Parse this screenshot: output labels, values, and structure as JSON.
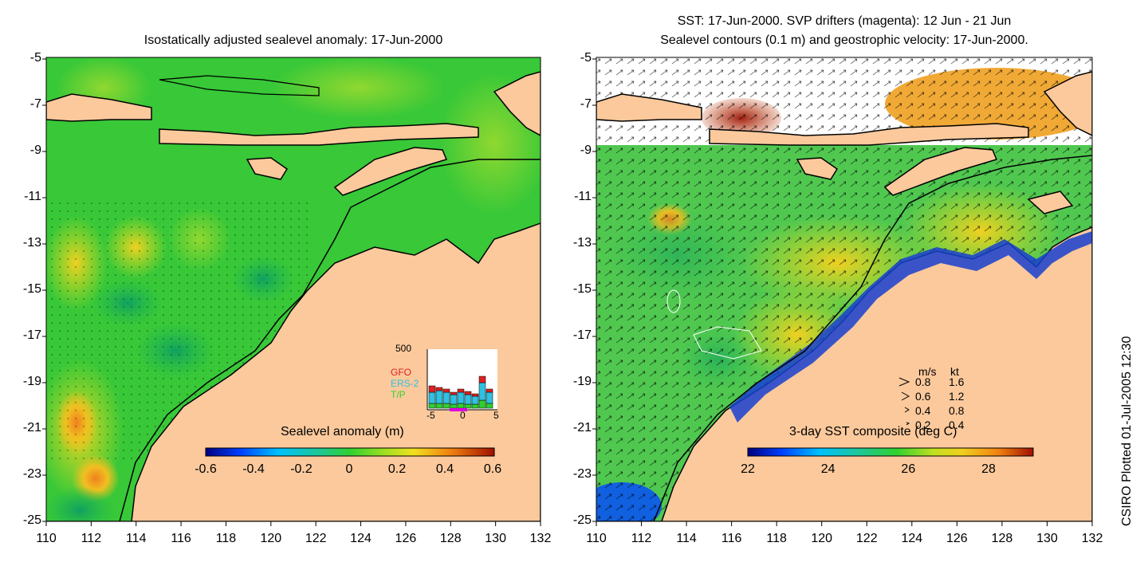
{
  "left_panel": {
    "title": "Isostatically adjusted sealevel anomaly: 17-Jun-2000",
    "colorbar": {
      "label": "Sealevel anomaly (m)",
      "ticks": [
        "-0.6",
        "-0.4",
        "-0.2",
        "0",
        "0.2",
        "0.4",
        "0.6"
      ]
    },
    "histogram": {
      "ymax_label": "500",
      "series": [
        "GFO",
        "ERS-2",
        "T/P"
      ],
      "series_colors": [
        "#e02020",
        "#30c0e0",
        "#30d030"
      ],
      "x_ticks": [
        "-5",
        "0",
        "5"
      ]
    }
  },
  "right_panel": {
    "title_line1": "SST: 17-Jun-2000. SVP drifters (magenta): 12 Jun - 21 Jun",
    "title_line2": "Sealevel contours (0.1 m) and geostrophic velocity: 17-Jun-2000.",
    "colorbar": {
      "label": "3-day SST composite (deg C)",
      "ticks": [
        "22",
        "24",
        "26",
        "28"
      ]
    },
    "velocity_legend": {
      "header_ms": "m/s",
      "header_kt": "kt",
      "rows": [
        {
          "ms": "0.8",
          "kt": "1.6"
        },
        {
          "ms": "0.6",
          "kt": "1.2"
        },
        {
          "ms": "0.4",
          "kt": "0.8"
        },
        {
          "ms": "0.2",
          "kt": "0.4"
        }
      ]
    }
  },
  "axes": {
    "lat_ticks": [
      "-5",
      "-7",
      "-9",
      "-11",
      "-13",
      "-15",
      "-17",
      "-19",
      "-21",
      "-23",
      "-25"
    ],
    "lon_ticks": [
      "110",
      "112",
      "114",
      "116",
      "118",
      "120",
      "122",
      "124",
      "126",
      "128",
      "130",
      "132"
    ]
  },
  "credit": "CSIRO Plotted 01-Jul-2005 12:30",
  "colors": {
    "land": "#fbc99c",
    "sea_base_left": "#30c830",
    "sea_base_right": "#50c860",
    "coast": "#000000"
  }
}
